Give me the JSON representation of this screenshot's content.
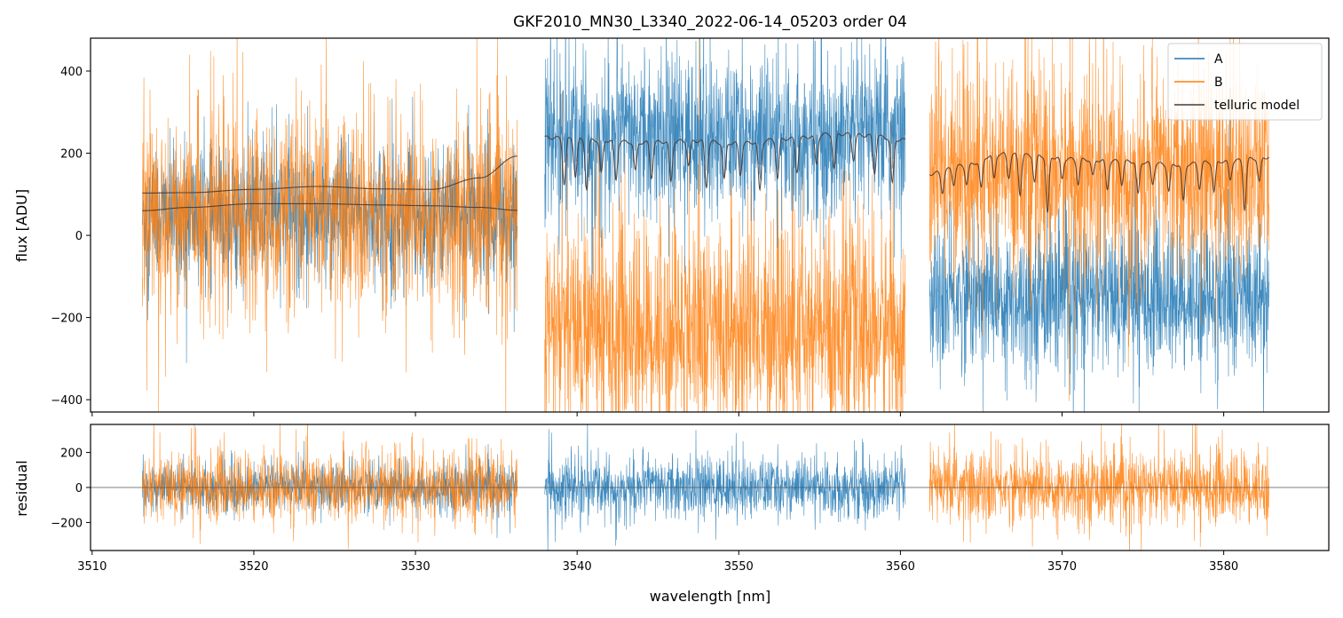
{
  "chart_data": {
    "type": "line",
    "title": "GKF2010_MN30_L3340_2022-06-14_05203  order 04",
    "xlabel": "wavelength [nm]",
    "colors": {
      "A": "#1f77b4",
      "B": "#ff7f0e",
      "telluric": "#4a3a33",
      "axis": "#000000"
    },
    "x_ticks": [
      3510,
      3520,
      3530,
      3540,
      3550,
      3560,
      3570,
      3580
    ],
    "xlim": [
      3509.9,
      3586.5
    ],
    "segments": [
      {
        "x_range": [
          3513.1,
          3536.3
        ],
        "A_level": 50,
        "A_noise": 80,
        "B_level": 55,
        "B_noise": 115,
        "res_A_noise": 65,
        "res_B_noise": 95
      },
      {
        "x_range": [
          3538.0,
          3560.3
        ],
        "A_level": 240,
        "A_noise": 95,
        "B_level": -230,
        "B_noise": 130,
        "res_A_noise": 85,
        "res_B_noise": null
      },
      {
        "x_range": [
          3561.8,
          3582.8
        ],
        "A_level": -150,
        "A_noise": 85,
        "B_level": 150,
        "B_noise": 120,
        "res_A_noise": null,
        "res_B_noise": 100
      }
    ],
    "top_panel": {
      "ylabel": "flux [ADU]",
      "y_ticks": [
        -400,
        -200,
        0,
        200,
        400
      ],
      "ylim": [
        -430,
        480
      ],
      "telluric_model": [
        {
          "x": [
            3513.1,
            3516,
            3520,
            3524,
            3528,
            3531,
            3534,
            3536.3
          ],
          "y": [
            103,
            104,
            112,
            119,
            113,
            112,
            140,
            193
          ]
        },
        {
          "x": [
            3513.1,
            3516,
            3520,
            3524,
            3528,
            3531,
            3534,
            3536.3
          ],
          "y": [
            60,
            68,
            77,
            77,
            74,
            72,
            68,
            61
          ]
        },
        {
          "x": [
            3538.0,
            3541,
            3544,
            3547,
            3550,
            3553,
            3556,
            3558,
            3560.3
          ],
          "y": [
            238,
            232,
            226,
            230,
            224,
            235,
            247,
            243,
            232
          ],
          "lines": [
            3539.2,
            3539.9,
            3540.6,
            3541.5,
            3542.4,
            3543.6,
            3544.6,
            3545.8,
            3546.9,
            3548.0,
            3549.1,
            3550.1,
            3551.3,
            3552.4,
            3553.6,
            3554.8,
            3555.9,
            3557.1,
            3558.4,
            3559.5
          ],
          "depths": [
            110,
            90,
            120,
            80,
            95,
            70,
            85,
            100,
            60,
            110,
            90,
            75,
            120,
            95,
            80,
            70,
            85,
            60,
            90,
            110
          ]
        },
        {
          "x": [
            3561.8,
            3564,
            3566,
            3568,
            3571,
            3574,
            3577,
            3580,
            3582.8
          ],
          "y": [
            150,
            170,
            198,
            195,
            185,
            180,
            172,
            180,
            190
          ],
          "lines": [
            3562.6,
            3563.3,
            3564.1,
            3565.0,
            3565.8,
            3566.7,
            3567.4,
            3568.3,
            3569.1,
            3570.0,
            3571.0,
            3571.9,
            3572.8,
            3573.7,
            3574.7,
            3575.6,
            3576.6,
            3577.5,
            3578.5,
            3579.4,
            3580.4,
            3581.3,
            3582.2
          ],
          "depths": [
            50,
            40,
            45,
            70,
            60,
            55,
            95,
            65,
            140,
            50,
            60,
            40,
            70,
            55,
            80,
            50,
            65,
            90,
            60,
            75,
            45,
            120,
            60
          ]
        }
      ]
    },
    "bottom_panel": {
      "ylabel": "residual",
      "y_ticks": [
        -200,
        0,
        200
      ],
      "ylim": [
        -360,
        360
      ]
    },
    "legend": {
      "entries": [
        "A",
        "B",
        "telluric model"
      ],
      "location": "upper right"
    }
  }
}
